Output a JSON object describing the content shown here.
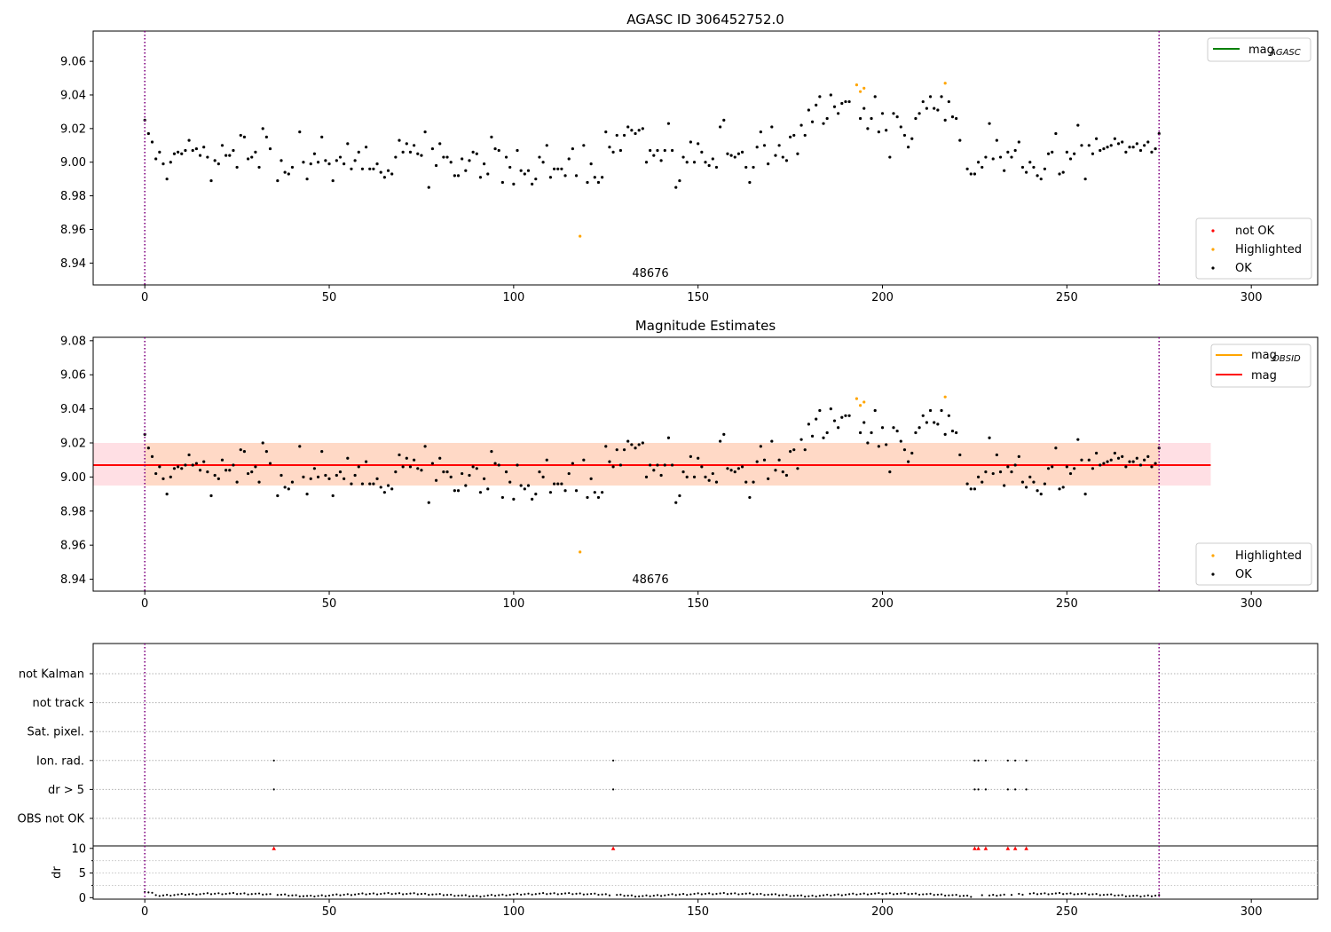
{
  "chart_data": [
    {
      "panel": "top",
      "type": "scatter",
      "title": "AGASC ID 306452752.0",
      "xlim": [
        -14,
        318
      ],
      "ylim": [
        8.927,
        9.078
      ],
      "xticks": [
        "0",
        "50",
        "100",
        "150",
        "200",
        "250",
        "300"
      ],
      "yticks": [
        "8.94",
        "8.96",
        "8.98",
        "9.00",
        "9.02",
        "9.04",
        "9.06"
      ],
      "vlines": [
        0,
        275
      ],
      "obsid_label": "48676",
      "legend_lines": [
        {
          "name": "mag",
          "sub": "AGASC",
          "color": "#008000"
        }
      ],
      "legend_markers": [
        {
          "name": "not OK",
          "color": "#ff0000"
        },
        {
          "name": "Highlighted",
          "color": "#ffa500"
        },
        {
          "name": "OK",
          "color": "#000000"
        }
      ]
    },
    {
      "panel": "middle",
      "type": "scatter",
      "title": "Magnitude Estimates",
      "xlim": [
        -14,
        318
      ],
      "ylim": [
        8.933,
        9.082
      ],
      "xticks": [
        "0",
        "50",
        "100",
        "150",
        "200",
        "250",
        "300"
      ],
      "yticks": [
        "8.94",
        "8.96",
        "8.98",
        "9.00",
        "9.02",
        "9.04",
        "9.06",
        "9.08"
      ],
      "vlines": [
        0,
        275
      ],
      "obsid_label": "48676",
      "mag": 9.007,
      "band_outer": [
        8.995,
        9.02
      ],
      "band_inner": [
        8.995,
        9.02
      ],
      "band_x": [
        -14,
        289
      ],
      "legend_lines": [
        {
          "name": "mag",
          "sub": "OBSID",
          "color": "#ffa500"
        },
        {
          "name": "mag",
          "sub": "",
          "color": "#ff0000"
        }
      ],
      "legend_markers": [
        {
          "name": "Highlighted",
          "color": "#ffa500"
        },
        {
          "name": "OK",
          "color": "#000000"
        }
      ]
    },
    {
      "panel": "flags",
      "type": "scatter",
      "xlim": [
        -14,
        318
      ],
      "categories": [
        "not Kalman",
        "not track",
        "Sat. pixel.",
        "Ion. rad.",
        "dr > 5",
        "OBS not OK"
      ],
      "flag_points": {
        "Ion. rad.": [
          35,
          127,
          225,
          226,
          228,
          234,
          236,
          239
        ],
        "dr > 5": [
          35,
          127,
          225,
          226,
          228,
          234,
          236,
          239
        ]
      },
      "vlines": [
        0,
        275
      ]
    },
    {
      "panel": "dr",
      "type": "scatter",
      "xlim": [
        -14,
        318
      ],
      "ylim": [
        -0.3,
        10.5
      ],
      "ylabel": "dr",
      "xticks": [
        "0",
        "50",
        "100",
        "150",
        "200",
        "250",
        "300"
      ],
      "yticks": [
        "0",
        "5",
        "10"
      ],
      "clipped_points": [
        35,
        127,
        225,
        226,
        228,
        234,
        236,
        239
      ],
      "vlines": [
        0,
        275
      ]
    }
  ],
  "series_top": [
    {
      "key": "ok",
      "color": "#000000",
      "points": [
        [
          0,
          9.025
        ],
        [
          1,
          9.017
        ],
        [
          2,
          9.012
        ],
        [
          3,
          9.002
        ],
        [
          4,
          9.006
        ],
        [
          5,
          8.999
        ],
        [
          6,
          8.99
        ],
        [
          7,
          9.0
        ],
        [
          8,
          9.005
        ],
        [
          9,
          9.006
        ],
        [
          10,
          9.005
        ],
        [
          11,
          9.007
        ],
        [
          12,
          9.013
        ],
        [
          13,
          9.007
        ],
        [
          14,
          9.008
        ],
        [
          15,
          9.004
        ],
        [
          16,
          9.009
        ],
        [
          17,
          9.003
        ],
        [
          18,
          8.989
        ],
        [
          19,
          9.001
        ],
        [
          20,
          8.999
        ],
        [
          21,
          9.01
        ],
        [
          22,
          9.004
        ],
        [
          23,
          9.004
        ],
        [
          24,
          9.007
        ],
        [
          25,
          8.997
        ],
        [
          26,
          9.016
        ],
        [
          27,
          9.015
        ],
        [
          28,
          9.002
        ],
        [
          29,
          9.003
        ],
        [
          30,
          9.006
        ],
        [
          31,
          8.997
        ],
        [
          32,
          9.02
        ],
        [
          33,
          9.015
        ],
        [
          34,
          9.008
        ],
        [
          36,
          8.989
        ],
        [
          37,
          9.001
        ],
        [
          38,
          8.994
        ],
        [
          39,
          8.993
        ],
        [
          40,
          8.997
        ],
        [
          42,
          9.018
        ],
        [
          43,
          9.0
        ],
        [
          44,
          8.99
        ],
        [
          45,
          8.999
        ],
        [
          46,
          9.005
        ],
        [
          47,
          9.0
        ],
        [
          48,
          9.015
        ],
        [
          49,
          9.001
        ],
        [
          50,
          8.999
        ],
        [
          51,
          8.989
        ],
        [
          52,
          9.001
        ],
        [
          53,
          9.003
        ],
        [
          54,
          8.999
        ],
        [
          55,
          9.011
        ],
        [
          56,
          8.996
        ],
        [
          57,
          9.001
        ],
        [
          58,
          9.006
        ],
        [
          59,
          8.996
        ],
        [
          60,
          9.009
        ],
        [
          61,
          8.996
        ],
        [
          62,
          8.996
        ],
        [
          63,
          8.999
        ],
        [
          64,
          8.994
        ],
        [
          65,
          8.991
        ],
        [
          66,
          8.995
        ],
        [
          67,
          8.993
        ],
        [
          68,
          9.003
        ],
        [
          69,
          9.013
        ],
        [
          70,
          9.006
        ],
        [
          71,
          9.011
        ],
        [
          72,
          9.006
        ],
        [
          73,
          9.01
        ],
        [
          74,
          9.005
        ],
        [
          75,
          9.004
        ],
        [
          76,
          9.018
        ],
        [
          77,
          8.985
        ],
        [
          78,
          9.008
        ],
        [
          79,
          8.998
        ],
        [
          80,
          9.011
        ],
        [
          81,
          9.003
        ],
        [
          82,
          9.003
        ],
        [
          83,
          9.0
        ],
        [
          84,
          8.992
        ],
        [
          85,
          8.992
        ],
        [
          86,
          9.002
        ],
        [
          87,
          8.995
        ],
        [
          88,
          9.001
        ],
        [
          89,
          9.006
        ],
        [
          90,
          9.005
        ],
        [
          91,
          8.991
        ],
        [
          92,
          8.999
        ],
        [
          93,
          8.993
        ],
        [
          94,
          9.015
        ],
        [
          95,
          9.008
        ],
        [
          96,
          9.007
        ],
        [
          97,
          8.988
        ],
        [
          98,
          9.003
        ],
        [
          99,
          8.997
        ],
        [
          100,
          8.987
        ],
        [
          101,
          9.007
        ],
        [
          102,
          8.995
        ],
        [
          103,
          8.993
        ],
        [
          104,
          8.995
        ],
        [
          105,
          8.987
        ],
        [
          106,
          8.99
        ],
        [
          107,
          9.003
        ],
        [
          108,
          9.0
        ],
        [
          109,
          9.01
        ],
        [
          110,
          8.991
        ],
        [
          111,
          8.996
        ],
        [
          112,
          8.996
        ],
        [
          113,
          8.996
        ],
        [
          114,
          8.992
        ],
        [
          115,
          9.002
        ],
        [
          116,
          9.008
        ],
        [
          117,
          8.992
        ],
        [
          119,
          9.01
        ],
        [
          120,
          8.988
        ],
        [
          121,
          8.999
        ],
        [
          122,
          8.991
        ],
        [
          123,
          8.988
        ],
        [
          124,
          8.991
        ],
        [
          125,
          9.018
        ],
        [
          126,
          9.009
        ],
        [
          127,
          9.006
        ],
        [
          128,
          9.016
        ],
        [
          129,
          9.007
        ],
        [
          130,
          9.016
        ],
        [
          131,
          9.021
        ],
        [
          132,
          9.019
        ],
        [
          133,
          9.017
        ],
        [
          134,
          9.019
        ],
        [
          135,
          9.02
        ],
        [
          136,
          9.0
        ],
        [
          137,
          9.007
        ],
        [
          138,
          9.004
        ],
        [
          139,
          9.007
        ],
        [
          140,
          9.001
        ],
        [
          141,
          9.007
        ],
        [
          142,
          9.023
        ],
        [
          143,
          9.007
        ],
        [
          144,
          8.985
        ],
        [
          145,
          8.989
        ],
        [
          146,
          9.003
        ],
        [
          147,
          9.0
        ],
        [
          148,
          9.012
        ],
        [
          149,
          9.0
        ],
        [
          150,
          9.011
        ],
        [
          151,
          9.006
        ],
        [
          152,
          9.0
        ],
        [
          153,
          8.998
        ],
        [
          154,
          9.002
        ],
        [
          155,
          8.997
        ],
        [
          156,
          9.021
        ],
        [
          157,
          9.025
        ],
        [
          158,
          9.005
        ],
        [
          159,
          9.004
        ],
        [
          160,
          9.003
        ],
        [
          161,
          9.005
        ],
        [
          162,
          9.006
        ],
        [
          163,
          8.997
        ],
        [
          164,
          8.988
        ],
        [
          165,
          8.997
        ],
        [
          166,
          9.009
        ],
        [
          167,
          9.018
        ],
        [
          168,
          9.01
        ],
        [
          169,
          8.999
        ],
        [
          170,
          9.021
        ],
        [
          171,
          9.004
        ],
        [
          172,
          9.01
        ],
        [
          173,
          9.003
        ],
        [
          174,
          9.001
        ],
        [
          175,
          9.015
        ],
        [
          176,
          9.016
        ],
        [
          177,
          9.005
        ],
        [
          178,
          9.022
        ],
        [
          179,
          9.016
        ],
        [
          180,
          9.031
        ],
        [
          181,
          9.024
        ],
        [
          182,
          9.034
        ],
        [
          183,
          9.039
        ],
        [
          184,
          9.023
        ],
        [
          185,
          9.026
        ],
        [
          186,
          9.04
        ],
        [
          187,
          9.033
        ],
        [
          188,
          9.029
        ],
        [
          189,
          9.035
        ],
        [
          190,
          9.036
        ],
        [
          191,
          9.036
        ],
        [
          194,
          9.026
        ],
        [
          195,
          9.032
        ],
        [
          196,
          9.02
        ],
        [
          197,
          9.026
        ],
        [
          198,
          9.039
        ],
        [
          199,
          9.018
        ],
        [
          200,
          9.029
        ],
        [
          201,
          9.019
        ],
        [
          202,
          9.003
        ],
        [
          203,
          9.029
        ],
        [
          204,
          9.027
        ],
        [
          205,
          9.021
        ],
        [
          206,
          9.016
        ],
        [
          207,
          9.009
        ],
        [
          208,
          9.014
        ],
        [
          209,
          9.026
        ],
        [
          210,
          9.029
        ],
        [
          211,
          9.036
        ],
        [
          212,
          9.032
        ],
        [
          213,
          9.039
        ],
        [
          214,
          9.032
        ],
        [
          215,
          9.031
        ],
        [
          216,
          9.039
        ],
        [
          217,
          9.025
        ],
        [
          218,
          9.036
        ],
        [
          219,
          9.027
        ],
        [
          220,
          9.026
        ],
        [
          221,
          9.013
        ],
        [
          223,
          8.996
        ],
        [
          224,
          8.993
        ],
        [
          225,
          8.993
        ],
        [
          226,
          9.0
        ],
        [
          227,
          8.997
        ],
        [
          228,
          9.003
        ],
        [
          229,
          9.023
        ],
        [
          230,
          9.002
        ],
        [
          231,
          9.013
        ],
        [
          232,
          9.003
        ],
        [
          233,
          8.995
        ],
        [
          234,
          9.006
        ],
        [
          235,
          9.003
        ],
        [
          236,
          9.007
        ],
        [
          237,
          9.012
        ],
        [
          238,
          8.997
        ],
        [
          239,
          8.994
        ],
        [
          240,
          9.0
        ],
        [
          241,
          8.997
        ],
        [
          242,
          8.992
        ],
        [
          243,
          8.99
        ],
        [
          244,
          8.996
        ],
        [
          245,
          9.005
        ],
        [
          246,
          9.006
        ],
        [
          247,
          9.017
        ],
        [
          248,
          8.993
        ],
        [
          249,
          8.994
        ],
        [
          250,
          9.006
        ],
        [
          251,
          9.002
        ],
        [
          252,
          9.005
        ],
        [
          253,
          9.022
        ],
        [
          254,
          9.01
        ],
        [
          255,
          8.99
        ],
        [
          256,
          9.01
        ],
        [
          257,
          9.005
        ],
        [
          258,
          9.014
        ],
        [
          259,
          9.007
        ],
        [
          260,
          9.008
        ],
        [
          261,
          9.009
        ],
        [
          262,
          9.01
        ],
        [
          263,
          9.014
        ],
        [
          264,
          9.011
        ],
        [
          265,
          9.012
        ],
        [
          266,
          9.006
        ],
        [
          267,
          9.009
        ],
        [
          268,
          9.009
        ],
        [
          269,
          9.011
        ],
        [
          270,
          9.007
        ],
        [
          271,
          9.01
        ],
        [
          272,
          9.012
        ],
        [
          273,
          9.006
        ],
        [
          274,
          9.008
        ],
        [
          275,
          9.017
        ]
      ]
    },
    {
      "key": "highlighted",
      "color": "#ffa500",
      "points": [
        [
          118,
          8.956
        ],
        [
          193,
          9.046
        ],
        [
          194,
          9.042
        ],
        [
          195,
          9.044
        ],
        [
          217,
          9.047
        ]
      ]
    }
  ]
}
